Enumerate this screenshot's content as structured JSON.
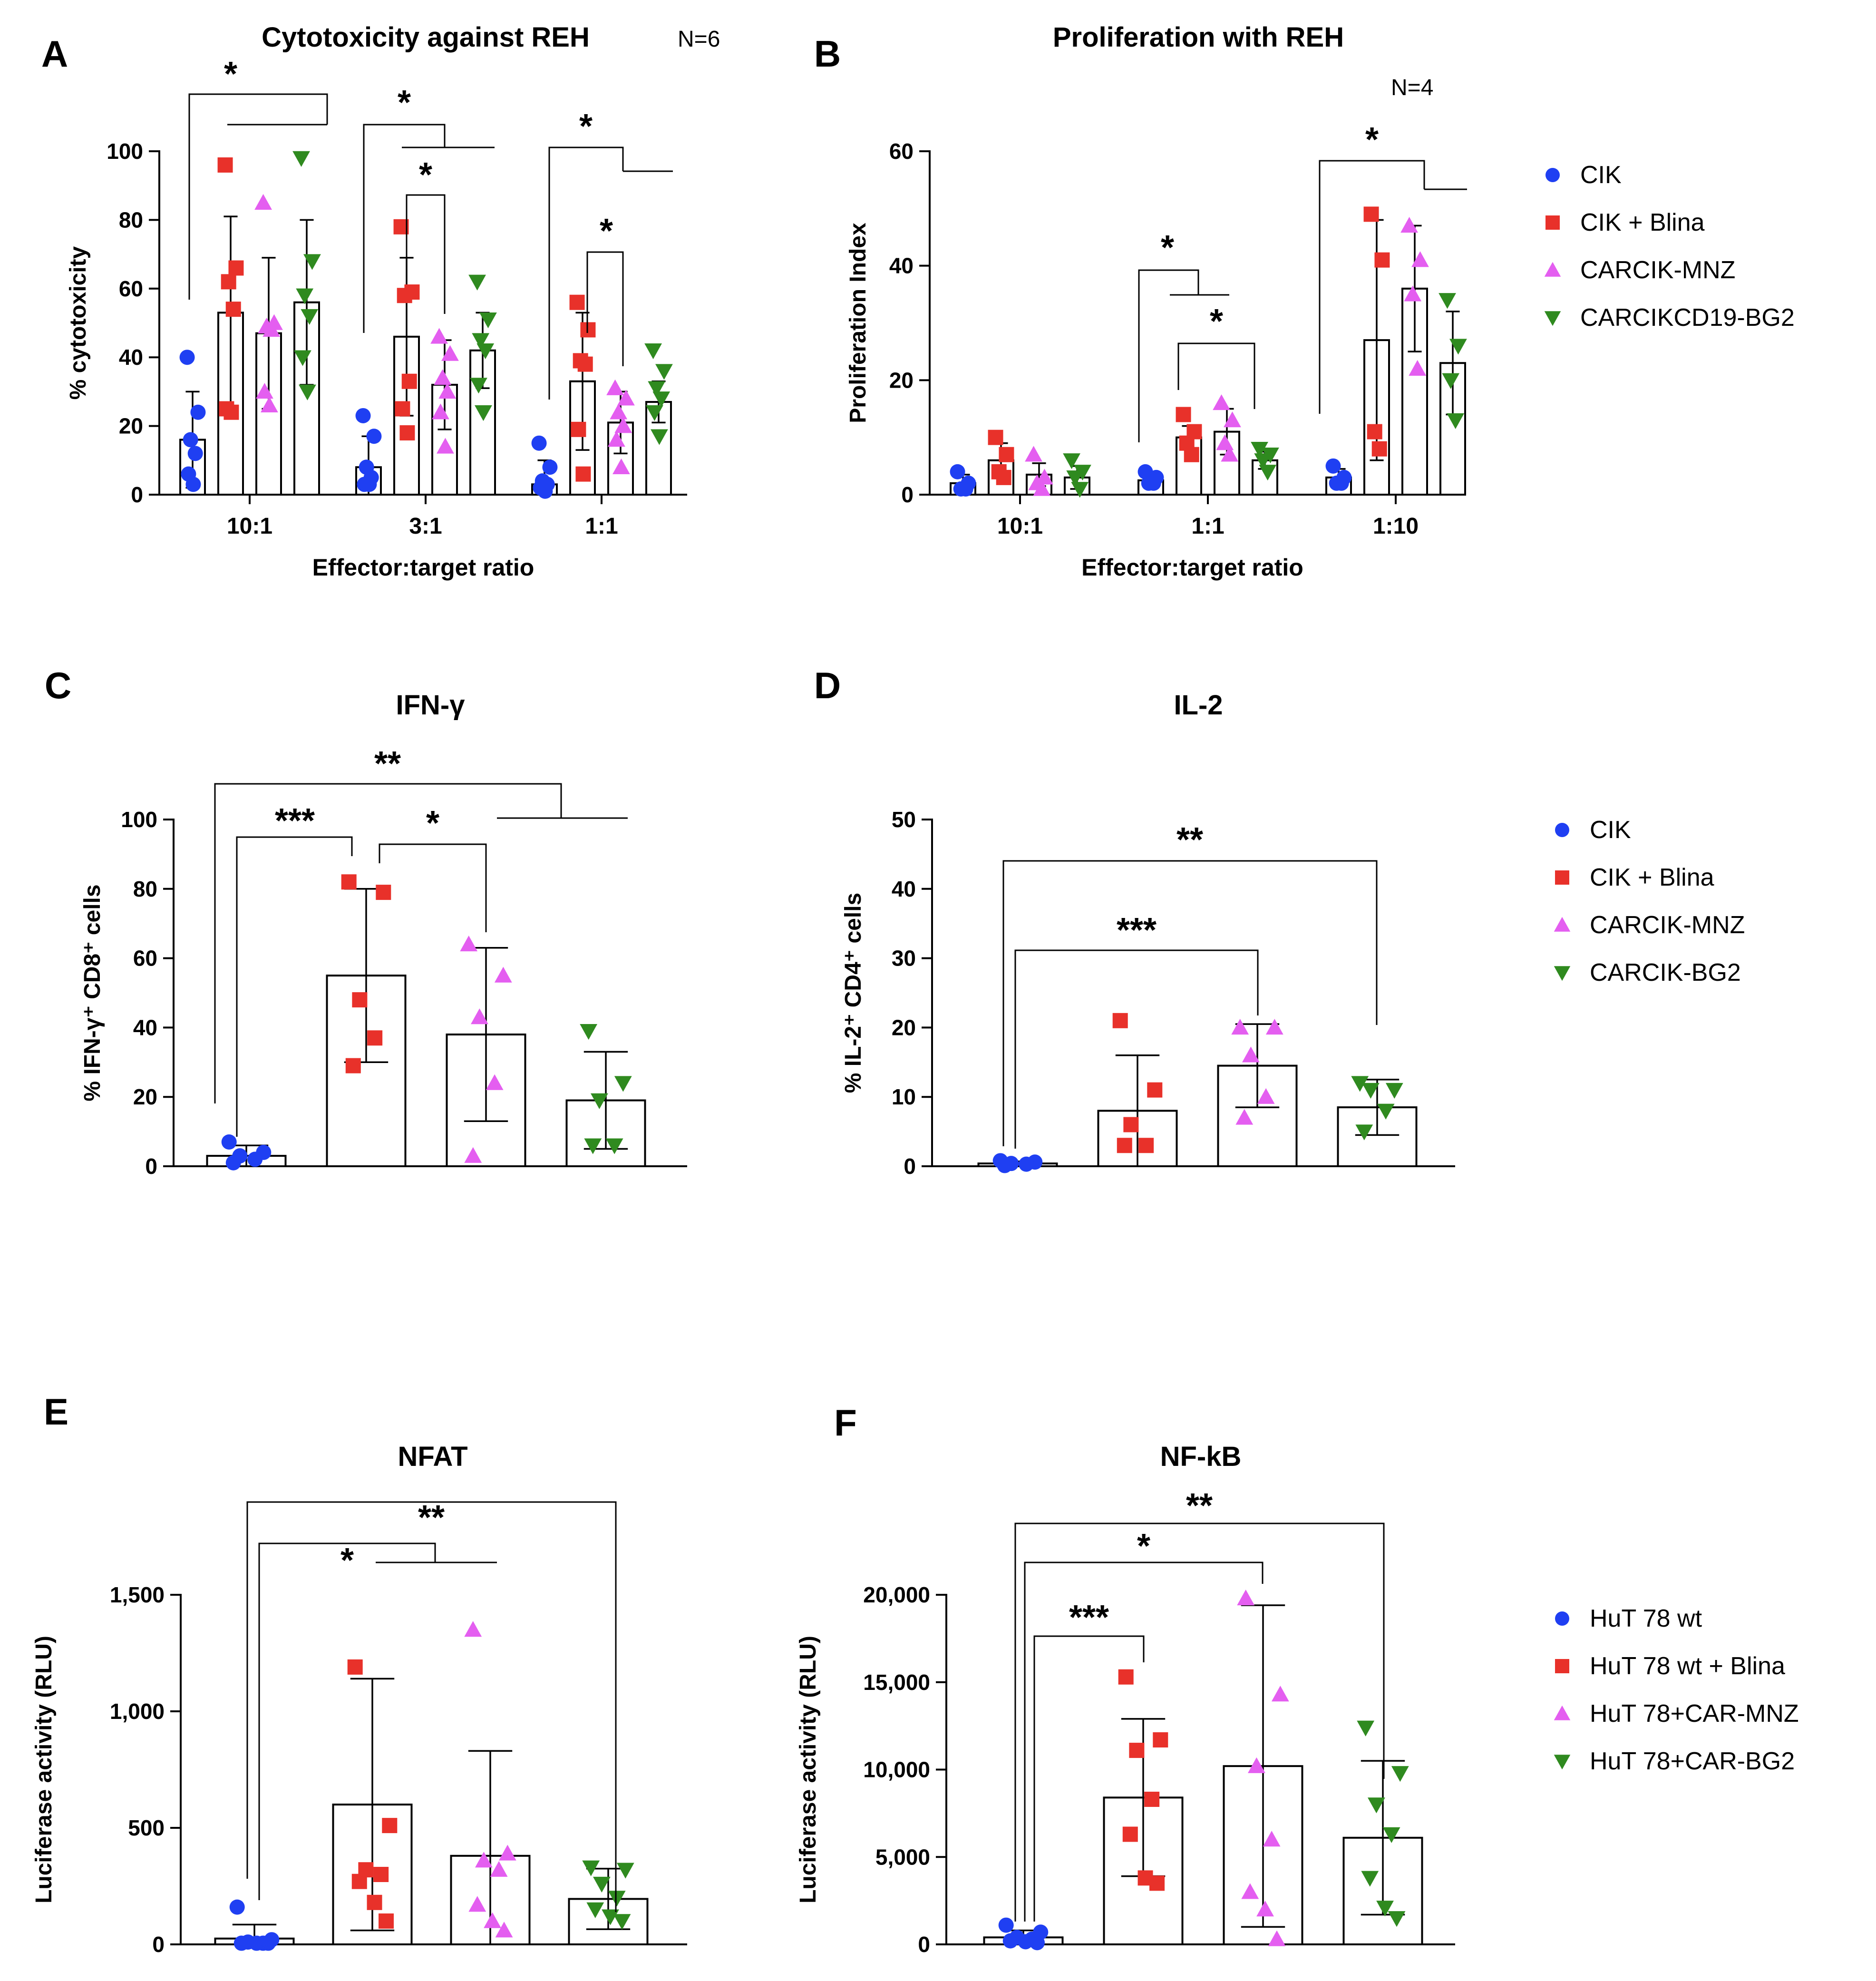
{
  "colors": {
    "CIK": "#1f3ff2",
    "Blina": "#e8312a",
    "MNZ": "#e45ef0",
    "BG2": "#2f8a1f"
  },
  "chart_data": [
    {
      "id": "A",
      "type": "bar",
      "letter": "A",
      "title": "Cytotoxicity against REH",
      "n_label": "N=6",
      "xlabel": "Effector:target ratio",
      "ylabel": "% cytotoxicity",
      "ylim": [
        0,
        100
      ],
      "yticks": [
        "0",
        "20",
        "40",
        "60",
        "80",
        "100"
      ],
      "ytick_values": [
        0,
        20,
        40,
        60,
        80,
        100
      ],
      "categories": [
        "10:1",
        "3:1",
        "1:1"
      ],
      "series": [
        {
          "name": "CIK",
          "marker": "circle",
          "color": "#1f3ff2",
          "means": [
            16,
            8,
            3
          ],
          "sd": [
            14,
            9,
            7
          ],
          "points": [
            [
              40,
              24,
              16,
              12,
              6,
              3
            ],
            [
              23,
              17,
              8,
              5,
              3,
              3
            ],
            [
              15,
              8,
              4,
              3,
              2,
              1
            ]
          ]
        },
        {
          "name": "CIK + Blina",
          "marker": "square",
          "color": "#e8312a",
          "means": [
            53,
            46,
            33
          ],
          "sd": [
            28,
            23,
            20
          ],
          "points": [
            [
              96,
              66,
              62,
              54,
              25,
              24
            ],
            [
              78,
              59,
              58,
              33,
              25,
              18
            ],
            [
              56,
              48,
              39,
              38,
              19,
              6
            ]
          ]
        },
        {
          "name": "CARCIK-MNZ",
          "marker": "triangle-up",
          "color": "#e45ef0",
          "means": [
            47,
            32,
            21
          ],
          "sd": [
            22,
            13,
            9
          ],
          "points": [
            [
              85,
              50,
              49,
              48,
              30,
              26
            ],
            [
              46,
              41,
              34,
              30,
              24,
              14
            ],
            [
              31,
              28,
              24,
              20,
              16,
              8
            ]
          ]
        },
        {
          "name": "CARCIKCD19-BG2",
          "marker": "triangle-down",
          "color": "#2f8a1f",
          "means": [
            56,
            42,
            27
          ],
          "sd": [
            24,
            11,
            6
          ],
          "points": [
            [
              98,
              68,
              58,
              52,
              40,
              30
            ],
            [
              62,
              51,
              45,
              42,
              32,
              24
            ],
            [
              42,
              36,
              31,
              28,
              24,
              17
            ]
          ]
        }
      ],
      "significance": [
        "*",
        "*",
        "*",
        "*",
        "*"
      ]
    },
    {
      "id": "B",
      "type": "bar",
      "letter": "B",
      "title": "Proliferation with REH",
      "n_label": "N=4",
      "xlabel": "Effector:target ratio",
      "ylabel": "Proliferation Index",
      "ylim": [
        0,
        60
      ],
      "yticks": [
        "0",
        "20",
        "40",
        "60"
      ],
      "ytick_values": [
        0,
        20,
        40,
        60
      ],
      "categories": [
        "10:1",
        "1:1",
        "1:10"
      ],
      "series": [
        {
          "name": "CIK",
          "marker": "circle",
          "color": "#1f3ff2",
          "means": [
            2,
            2.5,
            3
          ],
          "sd": [
            1.5,
            1,
            1.5
          ],
          "points": [
            [
              4,
              2,
              1,
              1
            ],
            [
              4,
              3,
              2,
              2
            ],
            [
              5,
              3,
              2,
              2
            ]
          ]
        },
        {
          "name": "CIK + Blina",
          "marker": "square",
          "color": "#e8312a",
          "means": [
            6,
            10,
            27
          ],
          "sd": [
            3,
            2,
            21
          ],
          "points": [
            [
              10,
              7,
              4,
              3
            ],
            [
              14,
              11,
              9,
              7
            ],
            [
              49,
              41,
              11,
              8
            ]
          ]
        },
        {
          "name": "CARCIK-MNZ",
          "marker": "triangle-up",
          "color": "#e45ef0",
          "means": [
            3.5,
            11,
            36
          ],
          "sd": [
            2,
            4,
            11
          ],
          "points": [
            [
              7,
              3,
              2,
              1
            ],
            [
              16,
              13,
              9,
              7
            ],
            [
              47,
              41,
              35,
              22
            ]
          ]
        },
        {
          "name": "CARCIKCD19-BG2",
          "marker": "triangle-down",
          "color": "#2f8a1f",
          "means": [
            3,
            6,
            23
          ],
          "sd": [
            2,
            1.5,
            9
          ],
          "points": [
            [
              6,
              4,
              3,
              1
            ],
            [
              8,
              7,
              6,
              4
            ],
            [
              34,
              26,
              20,
              13
            ]
          ]
        }
      ],
      "significance": [
        "*",
        "*",
        "*"
      ]
    },
    {
      "id": "C",
      "type": "bar",
      "letter": "C",
      "title": "IFN-γ",
      "ylabel": "% IFN-γ⁺ CD8⁺ cells",
      "ylim": [
        0,
        100
      ],
      "yticks": [
        "0",
        "20",
        "40",
        "60",
        "80",
        "100"
      ],
      "ytick_values": [
        0,
        20,
        40,
        60,
        80,
        100
      ],
      "series": [
        {
          "name": "CIK",
          "marker": "circle",
          "color": "#1f3ff2",
          "mean": 3,
          "sd": 3,
          "points": [
            7,
            4,
            3,
            2,
            1
          ]
        },
        {
          "name": "CIK + Blina",
          "marker": "square",
          "color": "#e8312a",
          "mean": 55,
          "sd": 25,
          "points": [
            82,
            79,
            48,
            37,
            29
          ]
        },
        {
          "name": "CARCIK-MNZ",
          "marker": "triangle-up",
          "color": "#e45ef0",
          "mean": 38,
          "sd": 25,
          "points": [
            64,
            55,
            43,
            24,
            3
          ]
        },
        {
          "name": "CARCIK-BG2",
          "marker": "triangle-down",
          "color": "#2f8a1f",
          "mean": 19,
          "sd": 14,
          "points": [
            39,
            24,
            19,
            6,
            6
          ]
        }
      ],
      "significance": [
        "**",
        "***",
        "*"
      ]
    },
    {
      "id": "D",
      "type": "bar",
      "letter": "D",
      "title": "IL-2",
      "ylabel": "% IL-2⁺ CD4⁺ cells",
      "ylim": [
        0,
        50
      ],
      "yticks": [
        "0",
        "10",
        "20",
        "30",
        "40",
        "50"
      ],
      "ytick_values": [
        0,
        10,
        20,
        30,
        40,
        50
      ],
      "series": [
        {
          "name": "CIK",
          "marker": "circle",
          "color": "#1f3ff2",
          "mean": 0.4,
          "sd": 0.3,
          "points": [
            0.8,
            0.6,
            0.4,
            0.3,
            0.1
          ]
        },
        {
          "name": "CIK + Blina",
          "marker": "square",
          "color": "#e8312a",
          "mean": 8,
          "sd": 8,
          "points": [
            21,
            11,
            6,
            3,
            3
          ]
        },
        {
          "name": "CARCIK-MNZ",
          "marker": "triangle-up",
          "color": "#e45ef0",
          "mean": 14.5,
          "sd": 6,
          "points": [
            20,
            20,
            16,
            10,
            7
          ]
        },
        {
          "name": "CARCIK-BG2",
          "marker": "triangle-down",
          "color": "#2f8a1f",
          "mean": 8.5,
          "sd": 4,
          "points": [
            12,
            11,
            11,
            8,
            5
          ]
        }
      ],
      "significance": [
        "**",
        "***"
      ]
    },
    {
      "id": "E",
      "type": "bar",
      "letter": "E",
      "title": "NFAT",
      "ylabel": "Luciferase activity (RLU)",
      "ylim": [
        0,
        1500
      ],
      "yticks": [
        "0",
        "500",
        "1,000",
        "1,500"
      ],
      "ytick_values": [
        0,
        500,
        1000,
        1500
      ],
      "series": [
        {
          "name": "HuT 78 wt",
          "marker": "circle",
          "color": "#1f3ff2",
          "mean": 25,
          "sd": 60,
          "points": [
            160,
            20,
            10,
            5,
            5,
            5,
            5
          ]
        },
        {
          "name": "HuT 78 wt + Blina",
          "marker": "square",
          "color": "#e8312a",
          "mean": 600,
          "sd": 540,
          "points": [
            1190,
            510,
            320,
            300,
            270,
            180,
            100
          ]
        },
        {
          "name": "HuT 78+CAR-MNZ",
          "marker": "triangle-up",
          "color": "#e45ef0",
          "mean": 380,
          "sd": 450,
          "points": [
            1350,
            390,
            360,
            320,
            170,
            100,
            60
          ]
        },
        {
          "name": "HuT 78+CAR-BG2",
          "marker": "triangle-down",
          "color": "#2f8a1f",
          "mean": 195,
          "sd": 130,
          "points": [
            330,
            320,
            260,
            200,
            150,
            120,
            100
          ]
        }
      ],
      "significance": [
        "**",
        "*"
      ]
    },
    {
      "id": "F",
      "type": "bar",
      "letter": "F",
      "title": "NF-kB",
      "ylabel": "Luciferase activity (RLU)",
      "ylim": [
        0,
        20000
      ],
      "yticks": [
        "0",
        "5,000",
        "10,000",
        "15,000",
        "20,000"
      ],
      "ytick_values": [
        0,
        5000,
        10000,
        15000,
        20000
      ],
      "series": [
        {
          "name": "HuT 78 wt",
          "marker": "circle",
          "color": "#1f3ff2",
          "mean": 400,
          "sd": 400,
          "points": [
            1100,
            700,
            400,
            300,
            200,
            150,
            100
          ]
        },
        {
          "name": "HuT 78 wt + Blina",
          "marker": "square",
          "color": "#e8312a",
          "mean": 8400,
          "sd": 4500,
          "points": [
            15300,
            11700,
            11100,
            8300,
            6300,
            3800,
            3500
          ]
        },
        {
          "name": "HuT 78+CAR-MNZ",
          "marker": "triangle-up",
          "color": "#e45ef0",
          "mean": 10200,
          "sd": 9200,
          "points": [
            19800,
            14300,
            10200,
            6000,
            3000,
            2000,
            300
          ]
        },
        {
          "name": "HuT 78+CAR-BG2",
          "marker": "triangle-down",
          "color": "#2f8a1f",
          "mean": 6100,
          "sd": 4400,
          "points": [
            12400,
            9800,
            8000,
            6300,
            3800,
            2100,
            1500
          ]
        }
      ],
      "significance": [
        "**",
        "*",
        "***"
      ]
    }
  ],
  "legends": {
    "L1": [
      "CIK",
      "CIK + Blina",
      "CARCIK-MNZ",
      "CARCIKCD19-BG2"
    ],
    "L2": [
      "CIK",
      "CIK + Blina",
      "CARCIK-MNZ",
      "CARCIK-BG2"
    ],
    "L3": [
      "HuT 78 wt",
      "HuT 78 wt + Blina",
      "HuT 78+CAR-MNZ",
      "HuT 78+CAR-BG2"
    ]
  }
}
